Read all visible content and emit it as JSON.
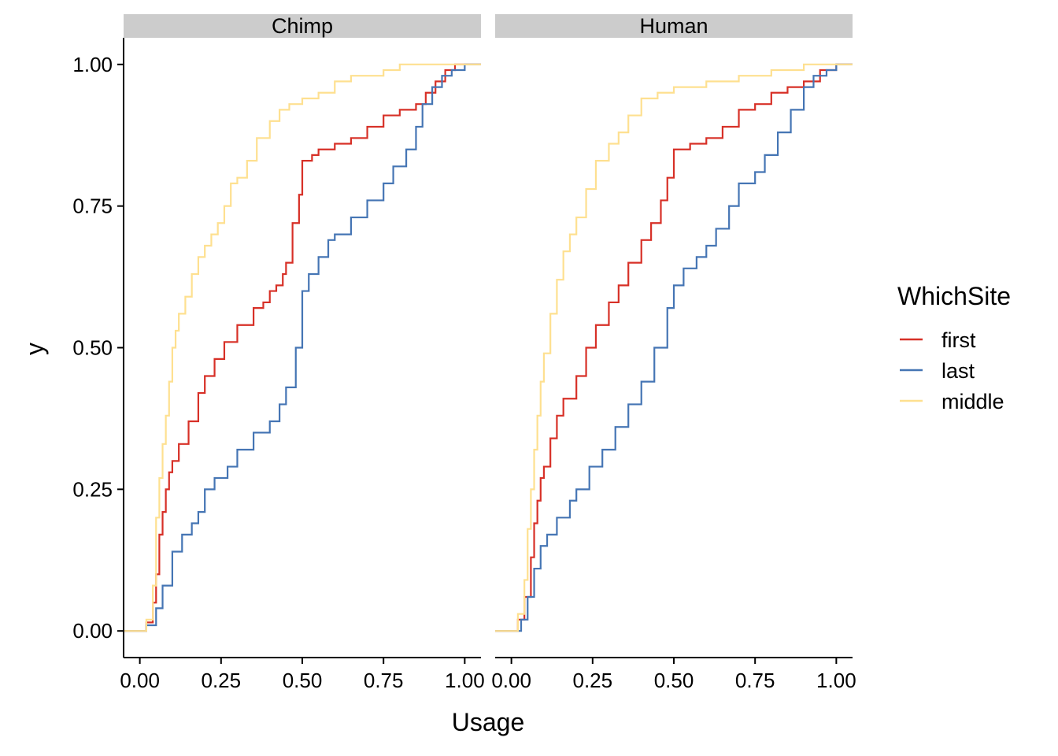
{
  "chart_data": {
    "type": "line",
    "subtype": "ecdf-step",
    "xlabel": "Usage",
    "ylabel": "y",
    "xlim": [
      -0.05,
      1.05
    ],
    "ylim": [
      -0.047,
      1.047
    ],
    "x_ticks": [
      0,
      0.25,
      0.5,
      0.75,
      1
    ],
    "x_tick_labels": [
      "0.00",
      "0.25",
      "0.50",
      "0.75",
      "1.00"
    ],
    "y_ticks": [
      0,
      0.25,
      0.5,
      0.75,
      1
    ],
    "y_tick_labels": [
      "0.00",
      "0.25",
      "0.50",
      "0.75",
      "1.00"
    ],
    "grid": false,
    "legend": {
      "title": "WhichSite",
      "position": "right",
      "entries": [
        {
          "label": "first",
          "color": "#d73027"
        },
        {
          "label": "last",
          "color": "#4575b4"
        },
        {
          "label": "middle",
          "color": "#fee090"
        }
      ]
    },
    "facets": [
      {
        "label": "Chimp",
        "series": [
          {
            "name": "first",
            "color": "#d73027",
            "points": [
              [
                -0.05,
                0
              ],
              [
                0,
                0
              ],
              [
                0.02,
                0.015
              ],
              [
                0.04,
                0.05
              ],
              [
                0.05,
                0.1
              ],
              [
                0.06,
                0.17
              ],
              [
                0.07,
                0.21
              ],
              [
                0.08,
                0.25
              ],
              [
                0.09,
                0.28
              ],
              [
                0.1,
                0.3
              ],
              [
                0.12,
                0.33
              ],
              [
                0.15,
                0.37
              ],
              [
                0.18,
                0.42
              ],
              [
                0.2,
                0.45
              ],
              [
                0.23,
                0.48
              ],
              [
                0.26,
                0.51
              ],
              [
                0.3,
                0.54
              ],
              [
                0.35,
                0.57
              ],
              [
                0.38,
                0.58
              ],
              [
                0.4,
                0.6
              ],
              [
                0.42,
                0.61
              ],
              [
                0.44,
                0.63
              ],
              [
                0.45,
                0.65
              ],
              [
                0.47,
                0.72
              ],
              [
                0.49,
                0.77
              ],
              [
                0.5,
                0.83
              ],
              [
                0.53,
                0.84
              ],
              [
                0.55,
                0.85
              ],
              [
                0.6,
                0.86
              ],
              [
                0.65,
                0.87
              ],
              [
                0.7,
                0.89
              ],
              [
                0.75,
                0.91
              ],
              [
                0.8,
                0.92
              ],
              [
                0.85,
                0.93
              ],
              [
                0.88,
                0.95
              ],
              [
                0.91,
                0.97
              ],
              [
                0.94,
                0.99
              ],
              [
                0.97,
                1.0
              ],
              [
                1.05,
                1.0
              ]
            ]
          },
          {
            "name": "last",
            "color": "#4575b4",
            "points": [
              [
                -0.05,
                0
              ],
              [
                0,
                0
              ],
              [
                0.02,
                0.01
              ],
              [
                0.05,
                0.04
              ],
              [
                0.07,
                0.08
              ],
              [
                0.1,
                0.14
              ],
              [
                0.13,
                0.17
              ],
              [
                0.16,
                0.19
              ],
              [
                0.18,
                0.21
              ],
              [
                0.2,
                0.25
              ],
              [
                0.23,
                0.27
              ],
              [
                0.27,
                0.29
              ],
              [
                0.3,
                0.32
              ],
              [
                0.35,
                0.35
              ],
              [
                0.4,
                0.37
              ],
              [
                0.43,
                0.4
              ],
              [
                0.45,
                0.43
              ],
              [
                0.48,
                0.5
              ],
              [
                0.5,
                0.6
              ],
              [
                0.52,
                0.63
              ],
              [
                0.55,
                0.66
              ],
              [
                0.58,
                0.69
              ],
              [
                0.6,
                0.7
              ],
              [
                0.65,
                0.73
              ],
              [
                0.7,
                0.76
              ],
              [
                0.75,
                0.79
              ],
              [
                0.78,
                0.82
              ],
              [
                0.82,
                0.85
              ],
              [
                0.85,
                0.89
              ],
              [
                0.87,
                0.93
              ],
              [
                0.9,
                0.96
              ],
              [
                0.93,
                0.98
              ],
              [
                0.96,
                0.99
              ],
              [
                1.0,
                1.0
              ],
              [
                1.05,
                1.0
              ]
            ]
          },
          {
            "name": "middle",
            "color": "#fee090",
            "points": [
              [
                -0.05,
                0
              ],
              [
                0,
                0
              ],
              [
                0.02,
                0.02
              ],
              [
                0.04,
                0.08
              ],
              [
                0.05,
                0.2
              ],
              [
                0.06,
                0.27
              ],
              [
                0.07,
                0.33
              ],
              [
                0.08,
                0.38
              ],
              [
                0.09,
                0.44
              ],
              [
                0.1,
                0.5
              ],
              [
                0.11,
                0.53
              ],
              [
                0.12,
                0.56
              ],
              [
                0.14,
                0.59
              ],
              [
                0.16,
                0.63
              ],
              [
                0.18,
                0.66
              ],
              [
                0.2,
                0.68
              ],
              [
                0.22,
                0.7
              ],
              [
                0.24,
                0.72
              ],
              [
                0.26,
                0.75
              ],
              [
                0.28,
                0.79
              ],
              [
                0.3,
                0.8
              ],
              [
                0.33,
                0.83
              ],
              [
                0.36,
                0.87
              ],
              [
                0.4,
                0.9
              ],
              [
                0.43,
                0.92
              ],
              [
                0.46,
                0.93
              ],
              [
                0.5,
                0.94
              ],
              [
                0.55,
                0.95
              ],
              [
                0.6,
                0.97
              ],
              [
                0.65,
                0.98
              ],
              [
                0.75,
                0.99
              ],
              [
                0.8,
                1.0
              ],
              [
                1.05,
                1.0
              ]
            ]
          }
        ]
      },
      {
        "label": "Human",
        "series": [
          {
            "name": "first",
            "color": "#d73027",
            "points": [
              [
                -0.05,
                0
              ],
              [
                0,
                0
              ],
              [
                0.02,
                0.02
              ],
              [
                0.04,
                0.06
              ],
              [
                0.06,
                0.13
              ],
              [
                0.07,
                0.19
              ],
              [
                0.08,
                0.23
              ],
              [
                0.09,
                0.27
              ],
              [
                0.1,
                0.29
              ],
              [
                0.12,
                0.34
              ],
              [
                0.14,
                0.38
              ],
              [
                0.16,
                0.41
              ],
              [
                0.2,
                0.45
              ],
              [
                0.23,
                0.5
              ],
              [
                0.26,
                0.54
              ],
              [
                0.3,
                0.58
              ],
              [
                0.33,
                0.61
              ],
              [
                0.36,
                0.65
              ],
              [
                0.4,
                0.69
              ],
              [
                0.43,
                0.72
              ],
              [
                0.46,
                0.76
              ],
              [
                0.48,
                0.8
              ],
              [
                0.5,
                0.85
              ],
              [
                0.55,
                0.86
              ],
              [
                0.6,
                0.87
              ],
              [
                0.65,
                0.89
              ],
              [
                0.7,
                0.92
              ],
              [
                0.75,
                0.93
              ],
              [
                0.8,
                0.95
              ],
              [
                0.85,
                0.96
              ],
              [
                0.9,
                0.97
              ],
              [
                0.95,
                0.99
              ],
              [
                1.0,
                1.0
              ],
              [
                1.05,
                1.0
              ]
            ]
          },
          {
            "name": "last",
            "color": "#4575b4",
            "points": [
              [
                -0.05,
                0
              ],
              [
                0,
                0
              ],
              [
                0.03,
                0.02
              ],
              [
                0.05,
                0.06
              ],
              [
                0.07,
                0.11
              ],
              [
                0.09,
                0.15
              ],
              [
                0.11,
                0.17
              ],
              [
                0.14,
                0.2
              ],
              [
                0.18,
                0.23
              ],
              [
                0.2,
                0.25
              ],
              [
                0.24,
                0.29
              ],
              [
                0.28,
                0.32
              ],
              [
                0.32,
                0.36
              ],
              [
                0.36,
                0.4
              ],
              [
                0.4,
                0.44
              ],
              [
                0.44,
                0.5
              ],
              [
                0.48,
                0.57
              ],
              [
                0.5,
                0.61
              ],
              [
                0.53,
                0.64
              ],
              [
                0.57,
                0.66
              ],
              [
                0.6,
                0.68
              ],
              [
                0.63,
                0.71
              ],
              [
                0.67,
                0.75
              ],
              [
                0.7,
                0.79
              ],
              [
                0.75,
                0.81
              ],
              [
                0.78,
                0.84
              ],
              [
                0.82,
                0.88
              ],
              [
                0.86,
                0.92
              ],
              [
                0.9,
                0.96
              ],
              [
                0.93,
                0.98
              ],
              [
                0.97,
                0.99
              ],
              [
                1.0,
                1.0
              ],
              [
                1.05,
                1.0
              ]
            ]
          },
          {
            "name": "middle",
            "color": "#fee090",
            "points": [
              [
                -0.05,
                0
              ],
              [
                0,
                0
              ],
              [
                0.02,
                0.03
              ],
              [
                0.04,
                0.09
              ],
              [
                0.05,
                0.18
              ],
              [
                0.06,
                0.25
              ],
              [
                0.07,
                0.32
              ],
              [
                0.08,
                0.38
              ],
              [
                0.09,
                0.44
              ],
              [
                0.1,
                0.49
              ],
              [
                0.12,
                0.56
              ],
              [
                0.14,
                0.62
              ],
              [
                0.16,
                0.67
              ],
              [
                0.18,
                0.7
              ],
              [
                0.2,
                0.73
              ],
              [
                0.23,
                0.78
              ],
              [
                0.26,
                0.83
              ],
              [
                0.3,
                0.86
              ],
              [
                0.33,
                0.88
              ],
              [
                0.36,
                0.91
              ],
              [
                0.4,
                0.94
              ],
              [
                0.45,
                0.95
              ],
              [
                0.5,
                0.96
              ],
              [
                0.6,
                0.97
              ],
              [
                0.7,
                0.98
              ],
              [
                0.8,
                0.99
              ],
              [
                0.9,
                1.0
              ],
              [
                1.05,
                1.0
              ]
            ]
          }
        ]
      }
    ]
  }
}
